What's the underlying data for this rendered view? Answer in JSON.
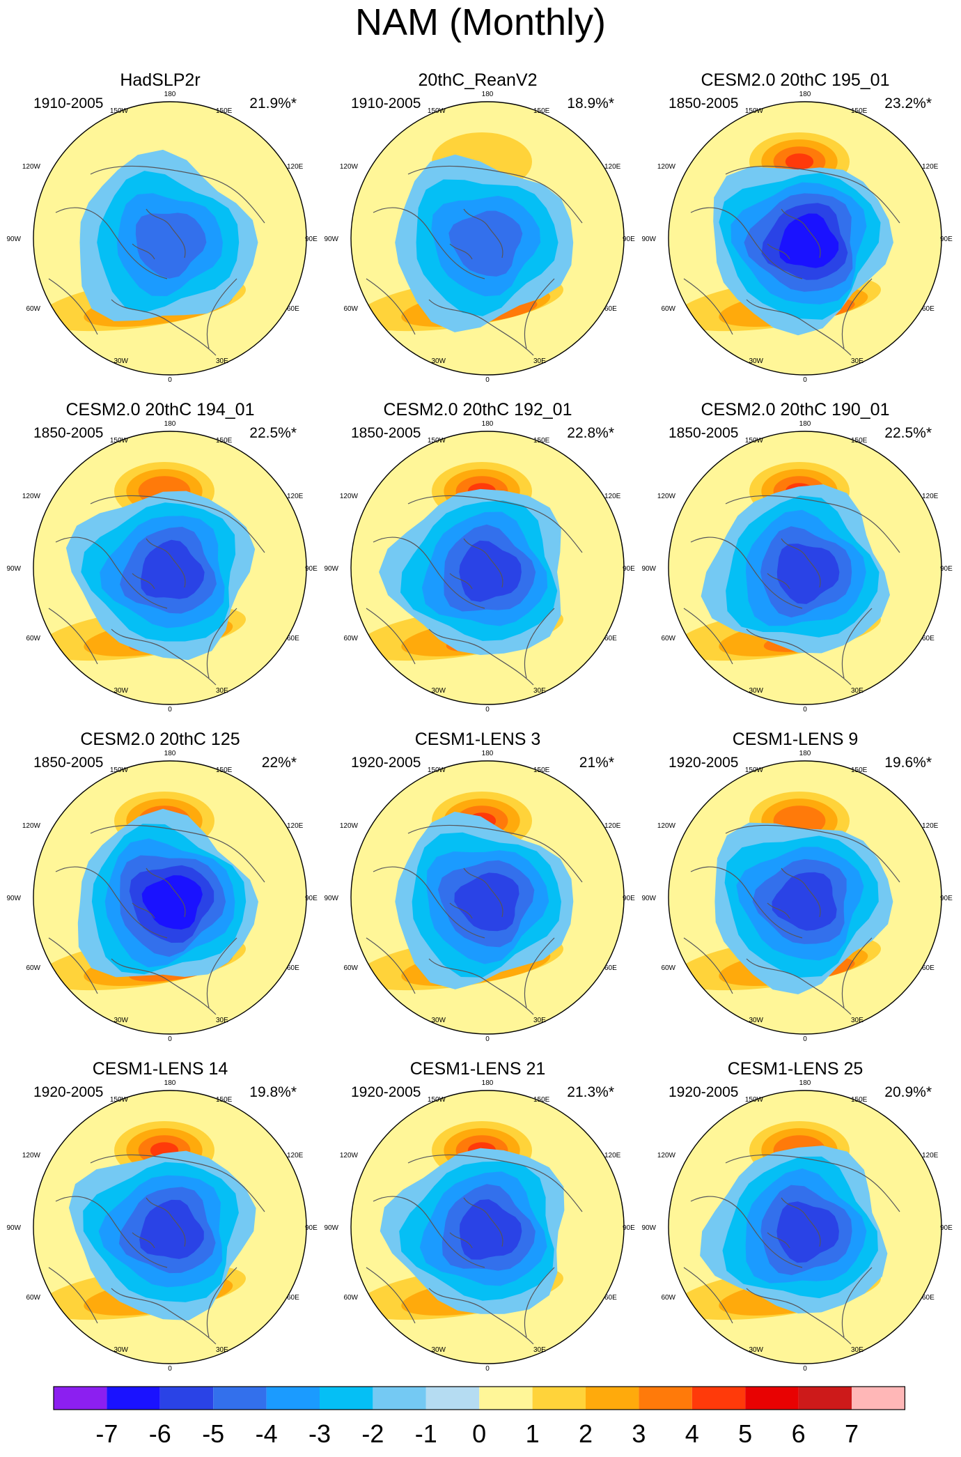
{
  "title": "NAM (Monthly)",
  "chart_data": {
    "type": "heatmap",
    "projection": "north polar stereographic",
    "variable": "NAM regression pattern (SLP)",
    "colorbar": {
      "ticks": [
        "-7",
        "-6",
        "-5",
        "-4",
        "-3",
        "-2",
        "-1",
        "0",
        "1",
        "2",
        "3",
        "4",
        "5",
        "6",
        "7"
      ],
      "colors": [
        "#8c1ff0",
        "#1a12ff",
        "#2a43e6",
        "#3370ec",
        "#1b9bff",
        "#05bff5",
        "#74c9f3",
        "#b5dcf2",
        "#fff698",
        "#ffd33a",
        "#ffaa0c",
        "#ff7a0a",
        "#ff3a0a",
        "#e80202",
        "#cd1a1a",
        "#ffb7b7"
      ]
    },
    "lon_labels": {
      "top": "180",
      "top_left": "150W",
      "top_right": "150E",
      "upper_left": "120W",
      "upper_right": "120E",
      "left": "90W",
      "right": "90E",
      "lower_left": "60W",
      "lower_right": "60E",
      "bottom_left": "30W",
      "bottom_right": "30E",
      "bottom": "0"
    },
    "panels": [
      {
        "title": "HadSLP2r",
        "period": "1910-2005",
        "variance": "21.9%*",
        "min_level": -4,
        "pac_max": 0,
        "atl_max": 2
      },
      {
        "title": "20thC_ReanV2",
        "period": "1910-2005",
        "variance": "18.9%*",
        "min_level": -4,
        "pac_max": 1,
        "atl_max": 3
      },
      {
        "title": "CESM2.0 20thC 195_01",
        "period": "1850-2005",
        "variance": "23.2%*",
        "min_level": -6,
        "pac_max": 4,
        "atl_max": 3
      },
      {
        "title": "CESM2.0 20thC 194_01",
        "period": "1850-2005",
        "variance": "22.5%*",
        "min_level": -5,
        "pac_max": 3,
        "atl_max": 3
      },
      {
        "title": "CESM2.0 20thC 192_01",
        "period": "1850-2005",
        "variance": "22.8%*",
        "min_level": -5,
        "pac_max": 4,
        "atl_max": 3
      },
      {
        "title": "CESM2.0 20thC 190_01",
        "period": "1850-2005",
        "variance": "22.5%*",
        "min_level": -5,
        "pac_max": 4,
        "atl_max": 3
      },
      {
        "title": "CESM2.0 20thC 125",
        "period": "1850-2005",
        "variance": "22%*",
        "min_level": -6,
        "pac_max": 4,
        "atl_max": 3
      },
      {
        "title": "CESM1-LENS 3",
        "period": "1920-2005",
        "variance": "21%*",
        "min_level": -5,
        "pac_max": 4,
        "atl_max": 2
      },
      {
        "title": "CESM1-LENS 9",
        "period": "1920-2005",
        "variance": "19.6%*",
        "min_level": -5,
        "pac_max": 3,
        "atl_max": 3
      },
      {
        "title": "CESM1-LENS 14",
        "period": "1920-2005",
        "variance": "19.8%*",
        "min_level": -5,
        "pac_max": 4,
        "atl_max": 2
      },
      {
        "title": "CESM1-LENS 21",
        "period": "1920-2005",
        "variance": "21.3%*",
        "min_level": -5,
        "pac_max": 4,
        "atl_max": 2
      },
      {
        "title": "CESM1-LENS 25",
        "period": "1920-2005",
        "variance": "20.9%*",
        "min_level": -5,
        "pac_max": 3,
        "atl_max": 2
      }
    ]
  }
}
